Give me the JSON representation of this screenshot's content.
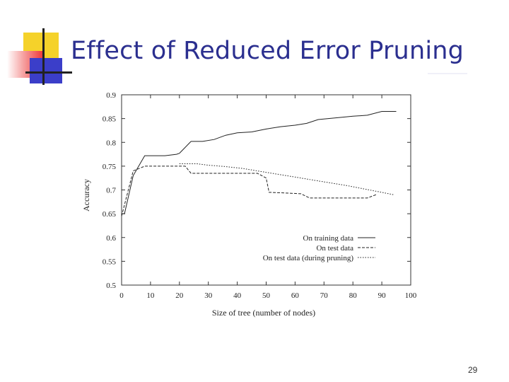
{
  "slide": {
    "title": "Effect of Reduced Error Pruning",
    "page_number": "29"
  },
  "colors": {
    "title": "#2b2f8f",
    "deco_yellow": "#f5d22a",
    "deco_red": "#ef3b3b",
    "deco_blue": "#3b3ec9",
    "deco_line": "#222222"
  },
  "chart_data": {
    "type": "line",
    "xlabel": "Size of tree (number of nodes)",
    "ylabel": "Accuracy",
    "xlim": [
      0,
      100
    ],
    "ylim": [
      0.5,
      0.9
    ],
    "xticks": [
      0,
      10,
      20,
      30,
      40,
      50,
      60,
      70,
      80,
      90,
      100
    ],
    "yticks": [
      0.5,
      0.55,
      0.6,
      0.65,
      0.7,
      0.75,
      0.8,
      0.85,
      0.9
    ],
    "ytick_labels": [
      "0.5",
      "0.55",
      "0.6",
      "0.65",
      "0.7",
      "0.75",
      "0.8",
      "0.85",
      "0.9"
    ],
    "legend_position": "bottom-right",
    "series": [
      {
        "name": "On training data",
        "style": "solid",
        "points": [
          [
            0,
            0.65
          ],
          [
            1,
            0.65
          ],
          [
            4,
            0.73
          ],
          [
            8,
            0.772
          ],
          [
            15,
            0.772
          ],
          [
            19,
            0.775
          ],
          [
            20,
            0.777
          ],
          [
            24,
            0.802
          ],
          [
            28,
            0.802
          ],
          [
            32,
            0.806
          ],
          [
            36,
            0.815
          ],
          [
            40,
            0.82
          ],
          [
            45,
            0.822
          ],
          [
            50,
            0.828
          ],
          [
            55,
            0.833
          ],
          [
            60,
            0.836
          ],
          [
            64,
            0.84
          ],
          [
            68,
            0.848
          ],
          [
            75,
            0.852
          ],
          [
            80,
            0.855
          ],
          [
            85,
            0.857
          ],
          [
            90,
            0.865
          ],
          [
            95,
            0.865
          ]
        ]
      },
      {
        "name": "On test data",
        "style": "dashed",
        "points": [
          [
            0,
            0.645
          ],
          [
            4,
            0.74
          ],
          [
            8,
            0.75
          ],
          [
            19,
            0.75
          ],
          [
            22,
            0.75
          ],
          [
            24,
            0.735
          ],
          [
            30,
            0.735
          ],
          [
            40,
            0.735
          ],
          [
            47,
            0.735
          ],
          [
            50,
            0.725
          ],
          [
            51,
            0.695
          ],
          [
            55,
            0.694
          ],
          [
            62,
            0.692
          ],
          [
            65,
            0.683
          ],
          [
            85,
            0.683
          ],
          [
            88,
            0.69
          ]
        ]
      },
      {
        "name": "On test data (during pruning)",
        "style": "dotted",
        "points": [
          [
            20,
            0.755
          ],
          [
            26,
            0.755
          ],
          [
            30,
            0.752
          ],
          [
            36,
            0.749
          ],
          [
            42,
            0.745
          ],
          [
            48,
            0.739
          ],
          [
            54,
            0.733
          ],
          [
            60,
            0.727
          ],
          [
            66,
            0.721
          ],
          [
            72,
            0.715
          ],
          [
            78,
            0.709
          ],
          [
            84,
            0.702
          ],
          [
            90,
            0.695
          ],
          [
            94,
            0.69
          ]
        ]
      }
    ]
  }
}
